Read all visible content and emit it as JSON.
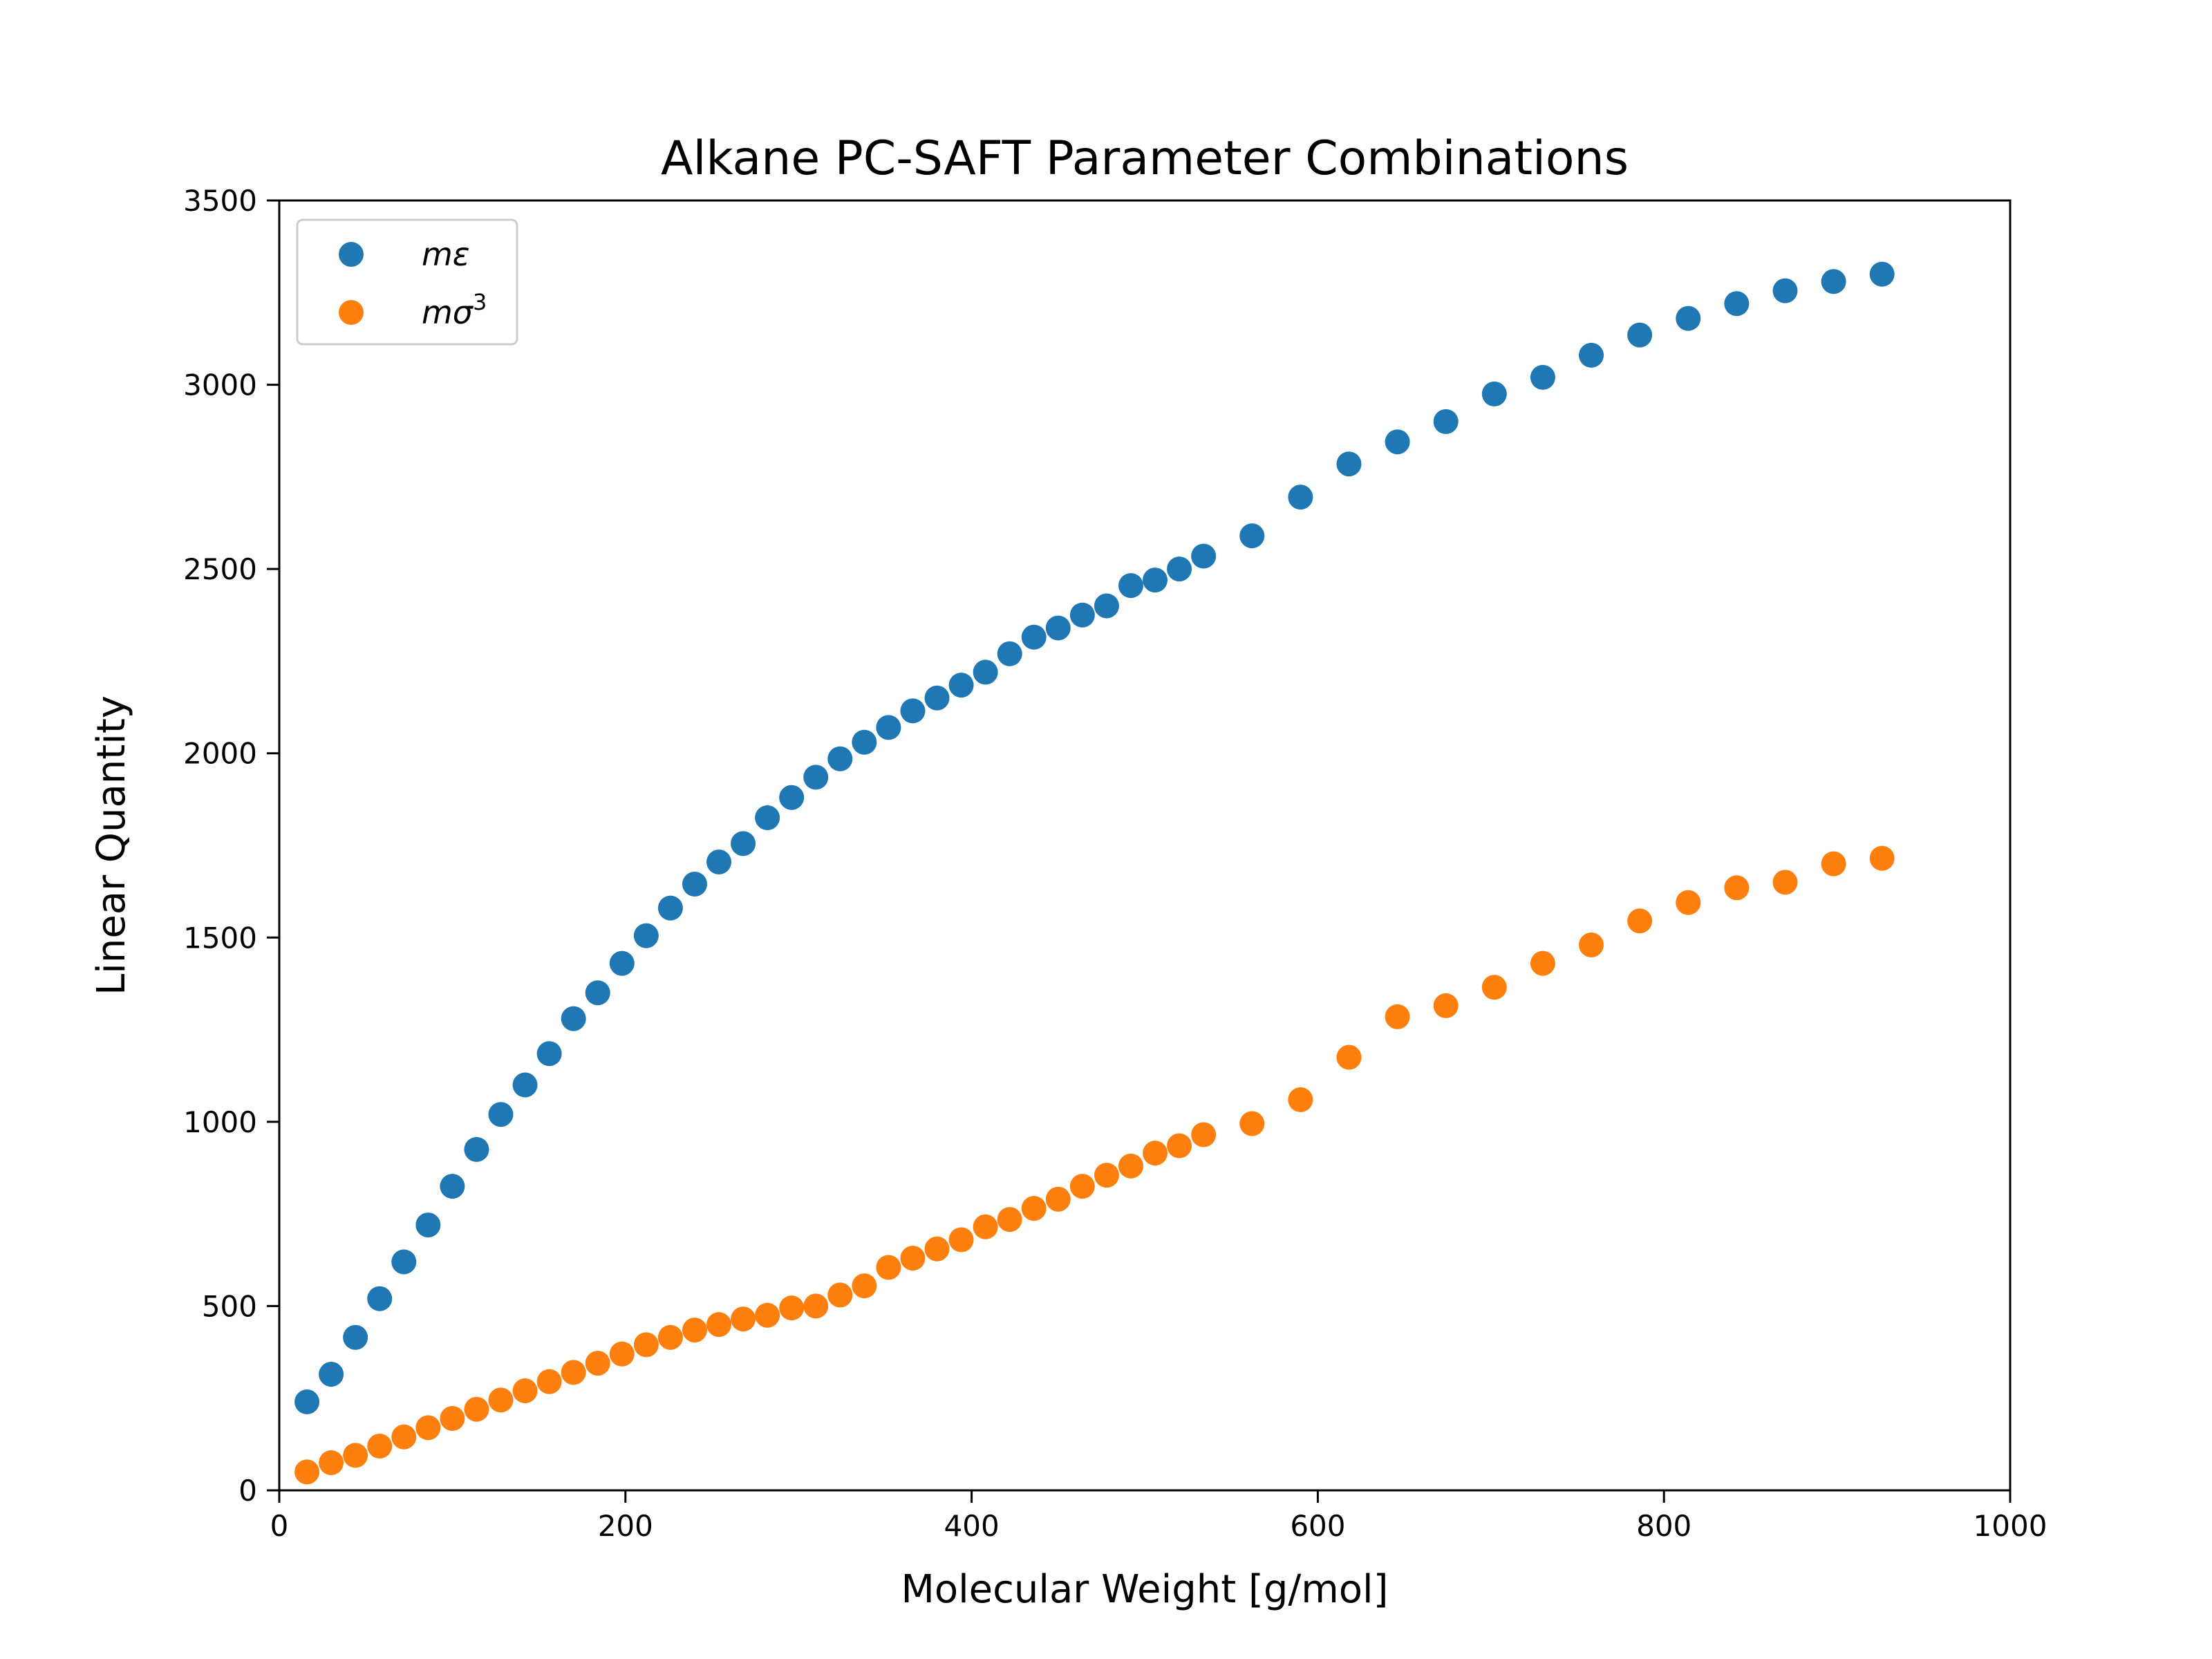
{
  "chart_data": {
    "type": "scatter",
    "title": "Alkane PC-SAFT Parameter Combinations",
    "xlabel": "Molecular Weight [g/mol]",
    "ylabel": "Linear Quantity",
    "xlim": [
      0,
      1000
    ],
    "ylim": [
      0,
      3500
    ],
    "xticks": [
      "0",
      "200",
      "400",
      "600",
      "800",
      "1000"
    ],
    "yticks": [
      "0",
      "500",
      "1000",
      "1500",
      "2000",
      "2500",
      "3000",
      "3500"
    ],
    "grid": false,
    "legend_position": "top-left",
    "series": [
      {
        "name": "mε",
        "legend_main": "mε",
        "legend_sup": "",
        "color": "#1f77b4",
        "x": [
          16,
          30,
          44,
          58,
          72,
          86,
          100,
          114,
          128,
          142,
          156,
          170,
          184,
          198,
          212,
          226,
          240,
          254,
          268,
          282,
          296,
          310,
          324,
          338,
          352,
          366,
          380,
          394,
          408,
          422,
          436,
          450,
          464,
          478,
          492,
          506,
          520,
          534,
          562,
          590,
          618,
          646,
          674,
          702,
          730,
          758,
          786,
          814,
          842,
          870,
          898,
          926
        ],
        "y": [
          240,
          315,
          415,
          520,
          620,
          720,
          825,
          925,
          1020,
          1100,
          1185,
          1280,
          1350,
          1430,
          1505,
          1580,
          1645,
          1705,
          1755,
          1825,
          1880,
          1935,
          1985,
          2030,
          2070,
          2115,
          2150,
          2185,
          2220,
          2270,
          2315,
          2340,
          2375,
          2400,
          2455,
          2470,
          2500,
          2535,
          2590,
          2695,
          2785,
          2845,
          2900,
          2975,
          3020,
          3080,
          3135,
          3180,
          3220,
          3255,
          3280,
          3300
        ]
      },
      {
        "name": "mσ3",
        "legend_main": "mσ",
        "legend_sup": "3",
        "color": "#ff7f0e",
        "x": [
          16,
          30,
          44,
          58,
          72,
          86,
          100,
          114,
          128,
          142,
          156,
          170,
          184,
          198,
          212,
          226,
          240,
          254,
          268,
          282,
          296,
          310,
          324,
          338,
          352,
          366,
          380,
          394,
          408,
          422,
          436,
          450,
          464,
          478,
          492,
          506,
          520,
          534,
          562,
          590,
          618,
          646,
          674,
          702,
          730,
          758,
          786,
          814,
          842,
          870,
          898,
          926
        ],
        "y": [
          50,
          75,
          95,
          120,
          145,
          170,
          195,
          220,
          245,
          270,
          295,
          320,
          345,
          370,
          395,
          415,
          435,
          450,
          465,
          475,
          495,
          500,
          530,
          555,
          605,
          630,
          655,
          680,
          715,
          735,
          765,
          790,
          825,
          855,
          880,
          915,
          935,
          965,
          995,
          1060,
          1175,
          1285,
          1315,
          1365,
          1430,
          1480,
          1545,
          1595,
          1635,
          1650,
          1700,
          1715
        ]
      }
    ]
  }
}
